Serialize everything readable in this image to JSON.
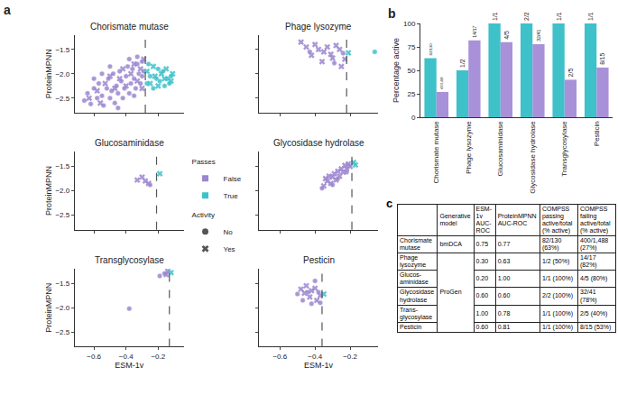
{
  "panel_labels": [
    "a",
    "b",
    "c"
  ],
  "legend": {
    "groups": [
      {
        "title": "Passes",
        "items": [
          {
            "name": "False",
            "color": "#9b86cf",
            "marker": "square"
          },
          {
            "name": "True",
            "color": "#3ec1c9",
            "marker": "square"
          }
        ]
      },
      {
        "title": "Activity",
        "items": [
          {
            "name": "No",
            "color": "#555555",
            "marker": "circle"
          },
          {
            "name": "Yes",
            "color": "#555555",
            "marker": "x"
          }
        ]
      }
    ]
  },
  "chart_data": [
    {
      "type": "scatter",
      "title": "Chorismate mutase",
      "y_label": "ProteinMPNN",
      "tick_labels": "y",
      "xlim": [
        -0.72,
        -0.04
      ],
      "ylim": [
        -2.8,
        -1.2
      ],
      "xticks": [
        {
          "value": -0.6,
          "label": "−0.6"
        },
        {
          "value": -0.4,
          "label": "−0.4"
        },
        {
          "value": -0.2,
          "label": "−0.2"
        }
      ],
      "yticks": [
        {
          "value": -2.5,
          "label": "−2.5"
        },
        {
          "value": -2.0,
          "label": "−2.0"
        },
        {
          "value": -1.5,
          "label": "−1.5"
        }
      ],
      "threshold": {
        "value": -0.28,
        "line_style": "dashed",
        "color": "#555555"
      },
      "series": [
        {
          "passes": "False",
          "activity": "No",
          "color": "#9b86cf",
          "marker": "circle",
          "x": [
            -0.66,
            -0.64,
            -0.62,
            -0.6,
            -0.58,
            -0.57,
            -0.55,
            -0.54,
            -0.52,
            -0.51,
            -0.5,
            -0.49,
            -0.48,
            -0.47,
            -0.46,
            -0.45,
            -0.44,
            -0.43,
            -0.42,
            -0.41,
            -0.4,
            -0.39,
            -0.38,
            -0.37,
            -0.36,
            -0.35,
            -0.34,
            -0.33,
            -0.32,
            -0.31,
            -0.3,
            -0.29,
            -0.6,
            -0.55,
            -0.5,
            -0.45,
            -0.38,
            -0.35,
            -0.33,
            -0.3
          ],
          "y": [
            -2.55,
            -2.4,
            -2.62,
            -2.3,
            -2.5,
            -2.2,
            -2.45,
            -2.65,
            -2.3,
            -2.1,
            -2.5,
            -2.35,
            -2.0,
            -2.6,
            -2.25,
            -2.4,
            -1.95,
            -2.15,
            -2.5,
            -2.3,
            -2.05,
            -1.85,
            -2.4,
            -2.2,
            -1.9,
            -2.1,
            -2.3,
            -1.8,
            -2.0,
            -2.2,
            -1.75,
            -1.95,
            -2.1,
            -2.0,
            -1.85,
            -2.7,
            -1.7,
            -2.45,
            -1.65,
            -2.05
          ]
        },
        {
          "passes": "False",
          "activity": "Yes",
          "color": "#9b86cf",
          "marker": "x",
          "x": [
            -0.63,
            -0.58,
            -0.53,
            -0.5,
            -0.47,
            -0.44,
            -0.42,
            -0.4,
            -0.37,
            -0.35,
            -0.33,
            -0.31,
            -0.3,
            -0.29,
            -0.56
          ],
          "y": [
            -2.5,
            -2.35,
            -2.2,
            -2.05,
            -2.3,
            -2.1,
            -1.9,
            -2.25,
            -2.0,
            -1.8,
            -2.15,
            -1.9,
            -2.3,
            -1.7,
            -2.6
          ]
        },
        {
          "passes": "True",
          "activity": "No",
          "color": "#3ec1c9",
          "marker": "circle",
          "x": [
            -0.27,
            -0.25,
            -0.23,
            -0.21,
            -0.19,
            -0.17,
            -0.16,
            -0.14,
            -0.12,
            -0.26,
            -0.2,
            -0.13
          ],
          "y": [
            -2.2,
            -2.05,
            -2.3,
            -2.1,
            -2.15,
            -1.95,
            -2.25,
            -2.1,
            -2.05,
            -1.8,
            -1.9,
            -2.2
          ]
        },
        {
          "passes": "True",
          "activity": "Yes",
          "color": "#3ec1c9",
          "marker": "x",
          "x": [
            -0.27,
            -0.25,
            -0.23,
            -0.22,
            -0.2,
            -0.18,
            -0.16,
            -0.15,
            -0.12,
            -0.11
          ],
          "y": [
            -1.95,
            -2.2,
            -1.85,
            -2.05,
            -2.25,
            -2.0,
            -2.1,
            -1.9,
            -2.15,
            -2.0
          ]
        }
      ]
    },
    {
      "type": "scatter",
      "title": "Phage lysozyme",
      "tick_labels": false,
      "xlim": [
        -0.72,
        -0.04
      ],
      "ylim": [
        -2.8,
        -1.2
      ],
      "xticks": [
        {
          "value": -0.6,
          "label": "−0.6"
        },
        {
          "value": -0.4,
          "label": "−0.4"
        },
        {
          "value": -0.2,
          "label": "−0.2"
        }
      ],
      "yticks": [
        {
          "value": -2.5,
          "label": "−2.5"
        },
        {
          "value": -2.0,
          "label": "−2.0"
        },
        {
          "value": -1.5,
          "label": "−1.5"
        }
      ],
      "threshold": {
        "value": -0.22,
        "line_style": "dashed",
        "color": "#555555"
      },
      "series": [
        {
          "passes": "False",
          "activity": "No",
          "color": "#9b86cf",
          "marker": "circle",
          "x": [
            -0.43,
            -0.24,
            -0.29
          ],
          "y": [
            -1.55,
            -1.58,
            -1.78
          ]
        },
        {
          "passes": "False",
          "activity": "Yes",
          "color": "#9b86cf",
          "marker": "x",
          "x": [
            -0.48,
            -0.45,
            -0.42,
            -0.4,
            -0.38,
            -0.36,
            -0.35,
            -0.33,
            -0.31,
            -0.3,
            -0.28,
            -0.26,
            -0.25,
            -0.23
          ],
          "y": [
            -1.35,
            -1.45,
            -1.62,
            -1.4,
            -1.5,
            -1.75,
            -1.55,
            -1.45,
            -1.6,
            -1.68,
            -1.42,
            -1.5,
            -1.85,
            -1.7
          ]
        },
        {
          "passes": "True",
          "activity": "No",
          "color": "#3ec1c9",
          "marker": "circle",
          "x": [
            -0.06
          ],
          "y": [
            -1.55
          ]
        },
        {
          "passes": "True",
          "activity": "Yes",
          "color": "#3ec1c9",
          "marker": "x",
          "x": [
            -0.21
          ],
          "y": [
            -1.57
          ]
        }
      ]
    },
    {
      "type": "scatter",
      "title": "Glucosaminidase",
      "y_label": "ProteinMPNN",
      "tick_labels": "y",
      "xlim": [
        -0.72,
        -0.04
      ],
      "ylim": [
        -2.8,
        -1.2
      ],
      "xticks": [
        {
          "value": -0.6,
          "label": "−0.6"
        },
        {
          "value": -0.4,
          "label": "−0.4"
        },
        {
          "value": -0.2,
          "label": "−0.2"
        }
      ],
      "yticks": [
        {
          "value": -2.5,
          "label": "−2.5"
        },
        {
          "value": -2.0,
          "label": "−2.0"
        },
        {
          "value": -1.5,
          "label": "−1.5"
        }
      ],
      "threshold": {
        "value": -0.21,
        "line_style": "dashed",
        "color": "#555555"
      },
      "series": [
        {
          "passes": "False",
          "activity": "No",
          "color": "#9b86cf",
          "marker": "circle",
          "x": [
            -0.25
          ],
          "y": [
            -1.88
          ]
        },
        {
          "passes": "False",
          "activity": "Yes",
          "color": "#9b86cf",
          "marker": "x",
          "x": [
            -0.33,
            -0.3,
            -0.28,
            -0.26
          ],
          "y": [
            -1.78,
            -1.72,
            -1.8,
            -1.85
          ]
        },
        {
          "passes": "True",
          "activity": "Yes",
          "color": "#3ec1c9",
          "marker": "x",
          "x": [
            -0.19
          ],
          "y": [
            -1.65
          ]
        }
      ]
    },
    {
      "type": "scatter",
      "title": "Glycosidase hydrolase",
      "tick_labels": false,
      "xlim": [
        -0.72,
        -0.04
      ],
      "ylim": [
        -2.8,
        -1.2
      ],
      "xticks": [
        {
          "value": -0.6,
          "label": "−0.6"
        },
        {
          "value": -0.4,
          "label": "−0.4"
        },
        {
          "value": -0.2,
          "label": "−0.2"
        }
      ],
      "yticks": [
        {
          "value": -2.5,
          "label": "−2.5"
        },
        {
          "value": -2.0,
          "label": "−2.0"
        },
        {
          "value": -1.5,
          "label": "−1.5"
        }
      ],
      "threshold": {
        "value": -0.19,
        "line_style": "dashed",
        "color": "#555555"
      },
      "series": [
        {
          "passes": "False",
          "activity": "No",
          "color": "#9b86cf",
          "marker": "circle",
          "x": [
            -0.36,
            -0.3,
            -0.27,
            -0.22
          ],
          "y": [
            -1.95,
            -1.88,
            -1.75,
            -1.62
          ]
        },
        {
          "passes": "False",
          "activity": "Yes",
          "color": "#9b86cf",
          "marker": "x",
          "x": [
            -0.35,
            -0.34,
            -0.33,
            -0.32,
            -0.31,
            -0.3,
            -0.29,
            -0.28,
            -0.27,
            -0.26,
            -0.25,
            -0.24,
            -0.23,
            -0.22,
            -0.21,
            -0.2
          ],
          "y": [
            -1.9,
            -1.75,
            -1.8,
            -1.7,
            -1.85,
            -1.72,
            -1.65,
            -1.78,
            -1.6,
            -1.7,
            -1.55,
            -1.62,
            -1.48,
            -1.55,
            -1.45,
            -1.5
          ]
        },
        {
          "passes": "True",
          "activity": "Yes",
          "color": "#3ec1c9",
          "marker": "x",
          "x": [
            -0.18,
            -0.17
          ],
          "y": [
            -1.42,
            -1.47
          ]
        }
      ]
    },
    {
      "type": "scatter",
      "title": "Transglycosylase",
      "x_label": "ESM-1v",
      "y_label": "ProteinMPNN",
      "tick_labels": true,
      "xlim": [
        -0.72,
        -0.04
      ],
      "ylim": [
        -2.8,
        -1.2
      ],
      "xticks": [
        {
          "value": -0.6,
          "label": "−0.6"
        },
        {
          "value": -0.4,
          "label": "−0.4"
        },
        {
          "value": -0.2,
          "label": "−0.2"
        }
      ],
      "yticks": [
        {
          "value": -2.5,
          "label": "−2.5"
        },
        {
          "value": -2.0,
          "label": "−2.0"
        },
        {
          "value": -1.5,
          "label": "−1.5"
        }
      ],
      "threshold": {
        "value": -0.13,
        "line_style": "dashed",
        "color": "#555555"
      },
      "series": [
        {
          "passes": "False",
          "activity": "No",
          "color": "#9b86cf",
          "marker": "circle",
          "x": [
            -0.38,
            -0.16,
            -0.19
          ],
          "y": [
            -2.02,
            -1.3,
            -1.35
          ]
        },
        {
          "passes": "False",
          "activity": "Yes",
          "color": "#9b86cf",
          "marker": "x",
          "x": [
            -0.14,
            -0.15
          ],
          "y": [
            -1.25,
            -1.32
          ]
        },
        {
          "passes": "True",
          "activity": "Yes",
          "color": "#3ec1c9",
          "marker": "x",
          "x": [
            -0.12
          ],
          "y": [
            -1.28
          ]
        }
      ]
    },
    {
      "type": "scatter",
      "title": "Pesticin",
      "x_label": "ESM-1v",
      "tick_labels": "x",
      "xlim": [
        -0.72,
        -0.04
      ],
      "ylim": [
        -2.8,
        -1.2
      ],
      "xticks": [
        {
          "value": -0.6,
          "label": "−0.6"
        },
        {
          "value": -0.4,
          "label": "−0.4"
        },
        {
          "value": -0.2,
          "label": "−0.2"
        }
      ],
      "yticks": [
        {
          "value": -2.5,
          "label": "−2.5"
        },
        {
          "value": -2.0,
          "label": "−2.0"
        },
        {
          "value": -1.5,
          "label": "−1.5"
        }
      ],
      "threshold": {
        "value": -0.36,
        "line_style": "dashed",
        "color": "#555555"
      },
      "series": [
        {
          "passes": "False",
          "activity": "No",
          "color": "#9b86cf",
          "marker": "circle",
          "x": [
            -0.5,
            -0.47,
            -0.44,
            -0.42,
            -0.4,
            -0.38,
            -0.37
          ],
          "y": [
            -1.72,
            -1.85,
            -1.68,
            -1.92,
            -1.45,
            -1.68,
            -1.9
          ]
        },
        {
          "passes": "False",
          "activity": "Yes",
          "color": "#9b86cf",
          "marker": "x",
          "x": [
            -0.48,
            -0.46,
            -0.45,
            -0.43,
            -0.42,
            -0.4,
            -0.39,
            -0.37
          ],
          "y": [
            -1.62,
            -1.7,
            -1.55,
            -1.78,
            -1.65,
            -1.6,
            -1.85,
            -1.75
          ]
        },
        {
          "passes": "True",
          "activity": "Yes",
          "color": "#3ec1c9",
          "marker": "x",
          "x": [
            -0.35
          ],
          "y": [
            -1.72
          ]
        }
      ]
    },
    {
      "type": "bar",
      "y_label": "Percentage active",
      "categories": [
        "Chorismate mutase",
        "Phage lysozyme",
        "Glucosaminidase",
        "Glycosidase hydrolase",
        "Transglycosylase",
        "Pesticin"
      ],
      "ylim": [
        0,
        100
      ],
      "yticks": [
        0,
        25,
        50,
        75,
        100
      ],
      "data_labels": true,
      "series": [
        {
          "color": "#3ec1c9",
          "values": [
            63,
            50,
            100,
            100,
            100,
            100
          ],
          "value_labels": [
            "82/130",
            "1/2",
            "1/1",
            "2/2",
            "1/1",
            "1/1"
          ]
        },
        {
          "color": "#a891d9",
          "values": [
            27,
            82,
            80,
            78,
            40,
            53
          ],
          "value_labels": [
            "400/1,488",
            "14/17",
            "4/5",
            "32/41",
            "2/5",
            "8/15"
          ]
        }
      ]
    }
  ],
  "table": {
    "header": [
      null,
      "Generative model",
      "ESM-1v AUC-ROC",
      "ProteinMPNN AUC-ROC",
      "COMPSS passing active/total (% active)",
      "COMPSS failing active/total (% active)"
    ],
    "rows": [
      [
        "Chorismate mutase",
        "bmDCA",
        "0.75",
        "0.77",
        "82/130 (63%)",
        "400/1,488 (27%)"
      ],
      [
        "Phage lysozyme",
        "ProGen",
        "0.30",
        "0.63",
        "1/2 (50%)",
        "14/17 (82%)"
      ],
      [
        "Glucos-aminidase",
        "ProGen",
        "0.20",
        "1.00",
        "1/1 (100%)",
        "4/5 (80%)"
      ],
      [
        "Glycosidase hydrolase",
        "ProGen",
        "0.60",
        "0.60",
        "2/2 (100%)",
        "32/41 (78%)"
      ],
      [
        "Trans-glycosylase",
        "ProGen",
        "1.00",
        "0.78",
        "1/1 (100%)",
        "2/5 (40%)"
      ],
      [
        "Pesticin",
        "ProGen",
        "0.60",
        "0.81",
        "1/1 (100%)",
        "8/15 (53%)"
      ]
    ]
  }
}
